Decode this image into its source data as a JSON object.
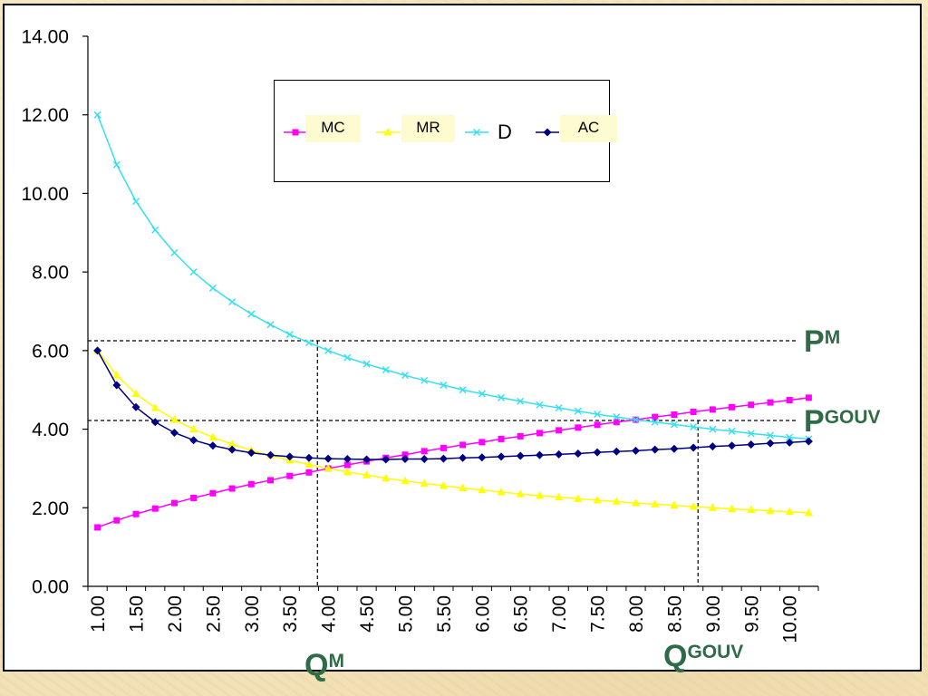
{
  "chart_data": {
    "type": "line",
    "x": [
      1.0,
      1.25,
      1.5,
      1.75,
      2.0,
      2.25,
      2.5,
      2.75,
      3.0,
      3.25,
      3.5,
      3.75,
      4.0,
      4.25,
      4.5,
      4.75,
      5.0,
      5.25,
      5.5,
      5.75,
      6.0,
      6.25,
      6.5,
      6.75,
      7.0,
      7.25,
      7.5,
      7.75,
      8.0,
      8.25,
      8.5,
      8.75,
      9.0,
      9.25,
      9.5,
      9.75,
      10.0,
      10.25
    ],
    "x_tick_labels": [
      "1.00",
      "1.50",
      "2.00",
      "2.50",
      "3.00",
      "3.50",
      "4.00",
      "4.50",
      "5.00",
      "5.50",
      "6.00",
      "6.50",
      "7.00",
      "7.50",
      "8.00",
      "8.50",
      "9.00",
      "9.50",
      "10.00"
    ],
    "y_tick_labels": [
      "0.00",
      "2.00",
      "4.00",
      "6.00",
      "8.00",
      "10.00",
      "12.00",
      "14.00"
    ],
    "ylim": [
      0,
      14
    ],
    "grid": false,
    "legend_position": "top-center",
    "series": [
      {
        "name": "MC",
        "color": "#ff00ff",
        "marker": "square",
        "values": [
          1.5,
          1.68,
          1.84,
          1.98,
          2.12,
          2.25,
          2.37,
          2.49,
          2.6,
          2.7,
          2.81,
          2.9,
          3.0,
          3.09,
          3.18,
          3.27,
          3.35,
          3.44,
          3.52,
          3.6,
          3.67,
          3.75,
          3.82,
          3.9,
          3.97,
          4.04,
          4.11,
          4.18,
          4.24,
          4.31,
          4.37,
          4.44,
          4.5,
          4.56,
          4.62,
          4.68,
          4.74,
          4.8
        ]
      },
      {
        "name": "MR",
        "color": "#ffff00",
        "marker": "triangle",
        "values": [
          6.0,
          5.37,
          4.9,
          4.54,
          4.24,
          4.0,
          3.79,
          3.62,
          3.46,
          3.33,
          3.21,
          3.1,
          3.0,
          2.91,
          2.83,
          2.75,
          2.68,
          2.62,
          2.56,
          2.5,
          2.45,
          2.4,
          2.35,
          2.31,
          2.27,
          2.23,
          2.19,
          2.16,
          2.12,
          2.09,
          2.06,
          2.03,
          2.0,
          1.97,
          1.95,
          1.92,
          1.9,
          1.87
        ]
      },
      {
        "name": "D",
        "color": "#33e0f0",
        "marker": "x",
        "values": [
          12.0,
          10.73,
          9.8,
          9.07,
          8.49,
          8.0,
          7.59,
          7.24,
          6.93,
          6.66,
          6.41,
          6.2,
          6.0,
          5.82,
          5.66,
          5.51,
          5.37,
          5.24,
          5.12,
          5.0,
          4.9,
          4.8,
          4.71,
          4.62,
          4.54,
          4.46,
          4.38,
          4.31,
          4.24,
          4.18,
          4.12,
          4.06,
          4.0,
          3.95,
          3.89,
          3.84,
          3.79,
          3.75
        ]
      },
      {
        "name": "AC",
        "color": "#000080",
        "marker": "diamond",
        "values": [
          6.0,
          5.12,
          4.56,
          4.18,
          3.91,
          3.72,
          3.58,
          3.48,
          3.4,
          3.34,
          3.3,
          3.27,
          3.25,
          3.24,
          3.23,
          3.23,
          3.24,
          3.24,
          3.25,
          3.27,
          3.28,
          3.3,
          3.32,
          3.34,
          3.36,
          3.38,
          3.41,
          3.43,
          3.45,
          3.48,
          3.5,
          3.53,
          3.56,
          3.58,
          3.61,
          3.64,
          3.66,
          3.69
        ]
      }
    ],
    "reference_lines": [
      {
        "price_label": "P",
        "price_sup": "M",
        "price": 6.25,
        "quantity_label": "Q",
        "quantity_sup": "M",
        "quantity": 3.86
      },
      {
        "price_label": "P",
        "price_sup": "GOUV",
        "price": 4.22,
        "quantity_label": "Q",
        "quantity_sup": "GOUV",
        "quantity": 8.81
      }
    ],
    "annotation_color": "#2f6b46"
  }
}
